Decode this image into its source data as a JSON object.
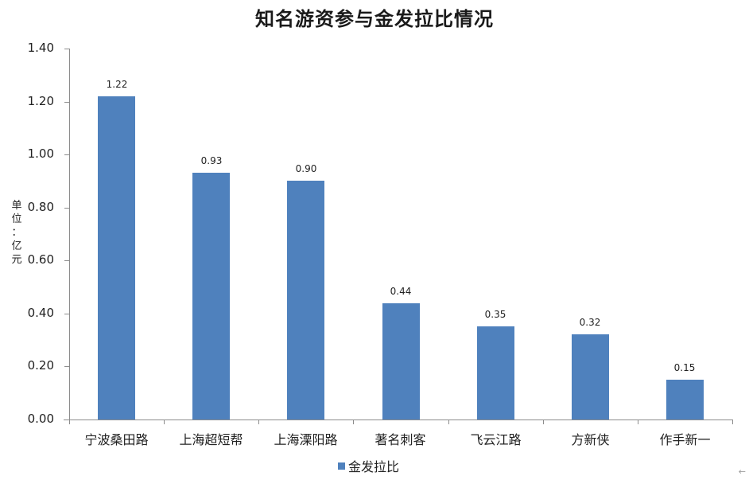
{
  "chart_data": {
    "type": "bar",
    "title": "知名游资参与金发拉比情况",
    "xlabel": "",
    "ylabel": "单位：亿元",
    "ylim": [
      0,
      1.4
    ],
    "yticks": [
      "0.00",
      "0.20",
      "0.40",
      "0.60",
      "0.80",
      "1.00",
      "1.20",
      "1.40"
    ],
    "grid": false,
    "legend_position": "bottom",
    "categories": [
      "宁波桑田路",
      "上海超短帮",
      "上海溧阳路",
      "著名刺客",
      "飞云江路",
      "方新侠",
      "作手新一"
    ],
    "series": [
      {
        "name": "金发拉比",
        "color": "#4f81bd",
        "values": [
          1.22,
          0.93,
          0.9,
          0.44,
          0.35,
          0.32,
          0.15
        ],
        "labels": [
          "1.22",
          "0.93",
          "0.90",
          "0.44",
          "0.35",
          "0.32",
          "0.15"
        ]
      }
    ]
  },
  "ylabel_chars": [
    "单",
    "位",
    "：",
    "亿",
    "元"
  ],
  "corner_icon": "arrow-left-icon"
}
